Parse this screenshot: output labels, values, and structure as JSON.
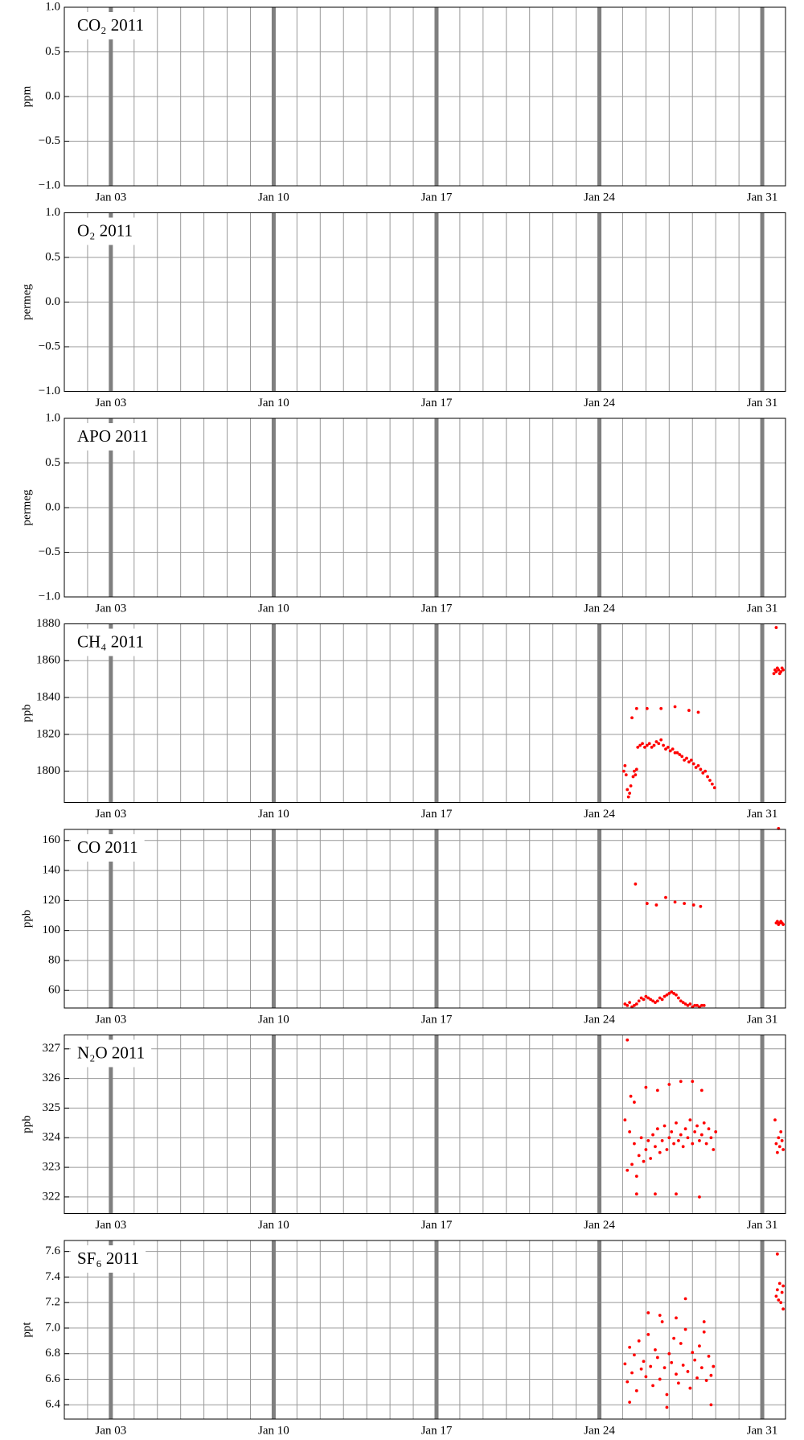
{
  "chart_data": [
    {
      "type": "scatter",
      "title": "CO₂ 2011",
      "y_label": "ppm",
      "color": "#ff0000",
      "grid": true,
      "x": [],
      "values": [],
      "xlim": [
        1,
        32
      ],
      "xticks": [
        {
          "value": 3,
          "label": "Jan 03"
        },
        {
          "value": 10,
          "label": "Jan 10"
        },
        {
          "value": 17,
          "label": "Jan 17"
        },
        {
          "value": 24,
          "label": "Jan 24"
        },
        {
          "value": 31,
          "label": "Jan 31"
        }
      ],
      "ylim": [
        -1,
        1
      ],
      "yticks": [
        {
          "value": -1,
          "label": "−1.0"
        },
        {
          "value": -0.5,
          "label": "−0.5"
        },
        {
          "value": 0,
          "label": "0.0"
        },
        {
          "value": 0.5,
          "label": "0.5"
        },
        {
          "value": 1,
          "label": "1.0"
        }
      ]
    },
    {
      "type": "scatter",
      "title": "O₂ 2011",
      "y_label": "permeg",
      "color": "#ff0000",
      "grid": true,
      "x": [],
      "values": [],
      "xlim": [
        1,
        32
      ],
      "xticks": [
        {
          "value": 3,
          "label": "Jan 03"
        },
        {
          "value": 10,
          "label": "Jan 10"
        },
        {
          "value": 17,
          "label": "Jan 17"
        },
        {
          "value": 24,
          "label": "Jan 24"
        },
        {
          "value": 31,
          "label": "Jan 31"
        }
      ],
      "ylim": [
        -1,
        1
      ],
      "yticks": [
        {
          "value": -1,
          "label": "−1.0"
        },
        {
          "value": -0.5,
          "label": "−0.5"
        },
        {
          "value": 0,
          "label": "0.0"
        },
        {
          "value": 0.5,
          "label": "0.5"
        },
        {
          "value": 1,
          "label": "1.0"
        }
      ]
    },
    {
      "type": "scatter",
      "title": "APO 2011",
      "y_label": "permeg",
      "color": "#ff0000",
      "grid": true,
      "x": [],
      "values": [],
      "xlim": [
        1,
        32
      ],
      "xticks": [
        {
          "value": 3,
          "label": "Jan 03"
        },
        {
          "value": 10,
          "label": "Jan 10"
        },
        {
          "value": 17,
          "label": "Jan 17"
        },
        {
          "value": 24,
          "label": "Jan 24"
        },
        {
          "value": 31,
          "label": "Jan 31"
        }
      ],
      "ylim": [
        -1,
        1
      ],
      "yticks": [
        {
          "value": -1,
          "label": "−1.0"
        },
        {
          "value": -0.5,
          "label": "−0.5"
        },
        {
          "value": 0,
          "label": "0.0"
        },
        {
          "value": 0.5,
          "label": "0.5"
        },
        {
          "value": 1,
          "label": "1.0"
        }
      ]
    },
    {
      "type": "scatter",
      "title": "CH₄ 2011",
      "y_label": "ppb",
      "color": "#ff0000",
      "grid": true,
      "x": [
        25.05,
        25.1,
        25.15,
        25.2,
        25.25,
        25.3,
        25.35,
        25.45,
        25.5,
        25.55,
        25.6,
        25.65,
        25.75,
        25.85,
        25.95,
        26.05,
        26.15,
        26.25,
        26.35,
        26.45,
        26.55,
        26.65,
        26.75,
        26.85,
        26.95,
        27.05,
        27.15,
        27.25,
        27.35,
        27.45,
        27.55,
        27.65,
        27.75,
        27.85,
        27.95,
        28.05,
        28.15,
        28.25,
        28.35,
        28.45,
        28.55,
        28.65,
        28.75,
        28.85,
        28.95,
        25.4,
        25.6,
        26.05,
        26.65,
        27.25,
        27.85,
        28.25,
        31.5,
        31.55,
        31.6,
        31.65,
        31.7,
        31.75,
        31.8,
        31.85,
        31.9,
        31.6
      ],
      "values": [
        1800,
        1803,
        1798,
        1790,
        1786,
        1788,
        1792,
        1797,
        1800,
        1798,
        1801,
        1813,
        1814,
        1815,
        1813,
        1814,
        1815,
        1813,
        1814,
        1816,
        1815,
        1817,
        1814,
        1812,
        1813,
        1811,
        1812,
        1810,
        1810,
        1809,
        1808,
        1806,
        1807,
        1805,
        1806,
        1804,
        1802,
        1803,
        1801,
        1799,
        1800,
        1797,
        1795,
        1793,
        1791,
        1829,
        1834,
        1834,
        1834,
        1835,
        1833,
        1832,
        1853,
        1855,
        1854,
        1856,
        1855,
        1853,
        1854,
        1856,
        1855,
        1878
      ],
      "xlim": [
        1,
        32
      ],
      "xticks": [
        {
          "value": 3,
          "label": "Jan 03"
        },
        {
          "value": 10,
          "label": "Jan 10"
        },
        {
          "value": 17,
          "label": "Jan 17"
        },
        {
          "value": 24,
          "label": "Jan 24"
        },
        {
          "value": 31,
          "label": "Jan 31"
        }
      ],
      "ylim": [
        1783,
        1880
      ],
      "yticks": [
        1800,
        1820,
        1840,
        1860,
        1880
      ]
    },
    {
      "type": "scatter",
      "title": "CO 2011",
      "y_label": "ppb",
      "color": "#ff0000",
      "grid": true,
      "x": [
        25.1,
        25.2,
        25.3,
        25.4,
        25.5,
        25.6,
        25.7,
        25.8,
        25.9,
        26.0,
        26.1,
        26.2,
        26.3,
        26.4,
        26.5,
        26.6,
        26.7,
        26.8,
        26.9,
        27.0,
        27.1,
        27.2,
        27.3,
        27.4,
        27.5,
        27.6,
        27.7,
        27.8,
        27.9,
        28.0,
        28.1,
        28.2,
        28.3,
        28.4,
        28.5,
        25.55,
        26.05,
        26.45,
        26.85,
        27.25,
        27.65,
        28.05,
        28.35,
        31.6,
        31.65,
        31.7,
        31.75,
        31.8,
        31.85,
        31.9,
        31.7
      ],
      "values": [
        51,
        50,
        52,
        49,
        50,
        51,
        53,
        55,
        54,
        56,
        55,
        54,
        53,
        52,
        53,
        55,
        54,
        56,
        57,
        58,
        59,
        58,
        57,
        55,
        53,
        52,
        51,
        50,
        51,
        49,
        50,
        50,
        49,
        50,
        50,
        131,
        118,
        117,
        122,
        119,
        118,
        117,
        116,
        105,
        106,
        104,
        105,
        106,
        105,
        104,
        168
      ],
      "xlim": [
        1,
        32
      ],
      "xticks": [
        {
          "value": 3,
          "label": "Jan 03"
        },
        {
          "value": 10,
          "label": "Jan 10"
        },
        {
          "value": 17,
          "label": "Jan 17"
        },
        {
          "value": 24,
          "label": "Jan 24"
        },
        {
          "value": 31,
          "label": "Jan 31"
        }
      ],
      "ylim": [
        48.3,
        167.4
      ],
      "yticks": [
        60,
        80,
        100,
        120,
        140,
        160
      ]
    },
    {
      "type": "scatter",
      "title": "N₂O 2011",
      "y_label": "ppb",
      "color": "#ff0000",
      "grid": true,
      "x": [
        25.1,
        25.2,
        25.3,
        25.4,
        25.5,
        25.6,
        25.7,
        25.8,
        25.9,
        26.0,
        26.1,
        26.2,
        26.3,
        26.4,
        26.5,
        26.6,
        26.7,
        26.8,
        26.9,
        27.0,
        27.1,
        27.2,
        27.3,
        27.4,
        27.5,
        27.6,
        27.7,
        27.8,
        27.9,
        28.0,
        28.1,
        28.2,
        28.3,
        28.4,
        28.5,
        28.6,
        28.7,
        28.8,
        28.9,
        29.0,
        25.2,
        25.35,
        25.5,
        26.0,
        26.5,
        27.0,
        27.5,
        28.0,
        28.4,
        25.6,
        26.4,
        27.3,
        28.3,
        31.55,
        31.6,
        31.65,
        31.7,
        31.75,
        31.8,
        31.85,
        31.9
      ],
      "values": [
        324.6,
        322.9,
        324.2,
        323.1,
        323.8,
        322.7,
        323.4,
        324.0,
        323.2,
        323.6,
        323.9,
        323.3,
        324.1,
        323.7,
        324.3,
        323.5,
        323.9,
        324.4,
        323.6,
        324.0,
        324.2,
        323.8,
        324.5,
        323.9,
        324.1,
        323.7,
        324.3,
        324.0,
        324.6,
        323.8,
        324.2,
        324.4,
        323.9,
        324.1,
        324.5,
        323.8,
        324.3,
        324.0,
        323.6,
        324.2,
        327.3,
        325.4,
        325.2,
        325.7,
        325.6,
        325.8,
        325.9,
        325.9,
        325.6,
        322.1,
        322.1,
        322.1,
        322.0,
        324.6,
        323.8,
        323.5,
        324.0,
        323.7,
        324.2,
        323.9,
        323.6
      ],
      "xlim": [
        1,
        32
      ],
      "xticks": [
        {
          "value": 3,
          "label": "Jan 03"
        },
        {
          "value": 10,
          "label": "Jan 10"
        },
        {
          "value": 17,
          "label": "Jan 17"
        },
        {
          "value": 24,
          "label": "Jan 24"
        },
        {
          "value": 31,
          "label": "Jan 31"
        }
      ],
      "ylim": [
        321.44,
        327.47
      ],
      "yticks": [
        322,
        323,
        324,
        325,
        326,
        327
      ]
    },
    {
      "type": "scatter",
      "title": "SF₆ 2011",
      "y_label": "ppt",
      "color": "#ff0000",
      "grid": true,
      "x": [
        25.1,
        25.2,
        25.3,
        25.4,
        25.5,
        25.6,
        25.7,
        25.8,
        25.9,
        26.0,
        26.1,
        26.2,
        26.3,
        26.4,
        26.5,
        26.6,
        26.7,
        26.8,
        26.9,
        27.0,
        27.1,
        27.2,
        27.3,
        27.4,
        27.5,
        27.6,
        27.7,
        27.8,
        27.9,
        28.0,
        28.1,
        28.2,
        28.3,
        28.4,
        28.5,
        28.6,
        28.7,
        28.8,
        28.9,
        26.1,
        26.6,
        27.3,
        27.7,
        28.5,
        25.3,
        26.9,
        28.8,
        31.6,
        31.65,
        31.7,
        31.75,
        31.8,
        31.85,
        31.9,
        31.9,
        31.65
      ],
      "values": [
        6.72,
        6.58,
        6.85,
        6.65,
        6.79,
        6.51,
        6.9,
        6.68,
        6.74,
        6.62,
        6.95,
        6.7,
        6.55,
        6.83,
        6.77,
        6.6,
        7.05,
        6.69,
        6.48,
        6.8,
        6.73,
        6.92,
        6.64,
        6.57,
        6.88,
        6.71,
        6.99,
        6.66,
        6.53,
        6.81,
        6.75,
        6.61,
        6.86,
        6.69,
        6.97,
        6.59,
        6.78,
        6.63,
        6.7,
        7.12,
        7.1,
        7.08,
        7.23,
        7.05,
        6.42,
        6.38,
        6.4,
        7.25,
        7.3,
        7.22,
        7.35,
        7.2,
        7.28,
        7.15,
        7.33,
        7.58
      ],
      "xlim": [
        1,
        32
      ],
      "xticks": [
        {
          "value": 3,
          "label": "Jan 03"
        },
        {
          "value": 10,
          "label": "Jan 10"
        },
        {
          "value": 17,
          "label": "Jan 17"
        },
        {
          "value": 24,
          "label": "Jan 24"
        },
        {
          "value": 31,
          "label": "Jan 31"
        }
      ],
      "ylim": [
        6.288,
        7.686
      ],
      "yticks": [
        {
          "value": 6.4,
          "label": "6.4"
        },
        {
          "value": 6.6,
          "label": "6.6"
        },
        {
          "value": 6.8,
          "label": "6.8"
        },
        {
          "value": 7.0,
          "label": "7.0"
        },
        {
          "value": 7.2,
          "label": "7.2"
        },
        {
          "value": 7.4,
          "label": "7.4"
        },
        {
          "value": 7.6,
          "label": "7.6"
        }
      ]
    }
  ]
}
